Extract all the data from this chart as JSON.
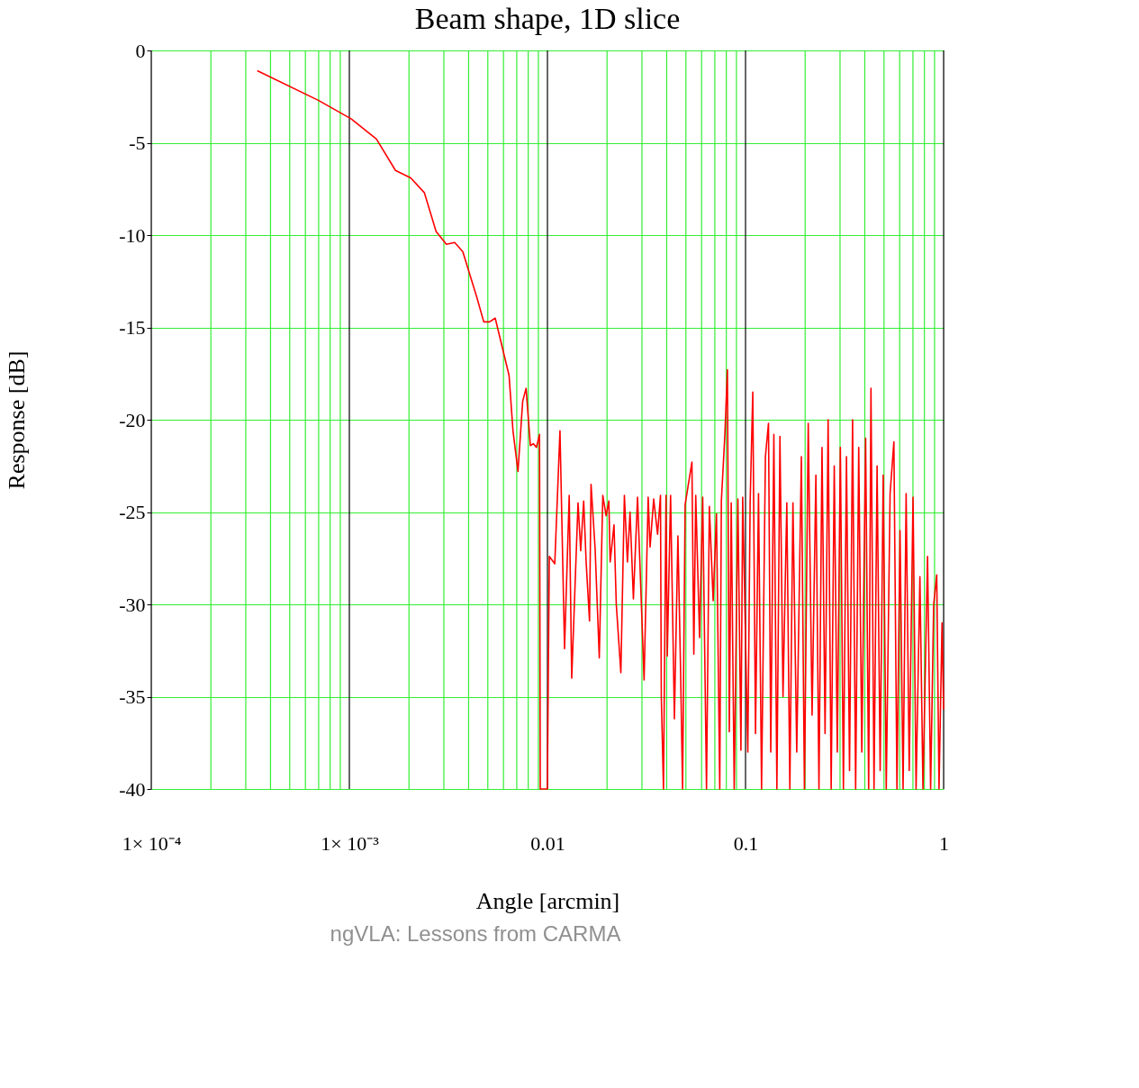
{
  "chart_data": {
    "type": "line",
    "title": "Beam shape, 1D slice",
    "xlabel": "Angle [arcmin]",
    "ylabel": "Response [dB]",
    "annotations": [
      "ngVLA: Lessons from CARMA"
    ],
    "log": "x",
    "grid": true,
    "xlim": [
      0.0001,
      1
    ],
    "ylim": [
      -40,
      0
    ],
    "xticks": [
      {
        "value": 0.0001,
        "label": "1× 10⁻⁴"
      },
      {
        "value": 0.0002,
        "label": null
      },
      {
        "value": 0.0003,
        "label": null
      },
      {
        "value": 0.0004,
        "label": null
      },
      {
        "value": 0.0005,
        "label": null
      },
      {
        "value": 0.0006,
        "label": null
      },
      {
        "value": 0.0007,
        "label": null
      },
      {
        "value": 0.0008,
        "label": null
      },
      {
        "value": 0.0009,
        "label": null
      },
      {
        "value": 0.001,
        "label": "1× 10⁻³"
      },
      {
        "value": 0.002,
        "label": null
      },
      {
        "value": 0.003,
        "label": null
      },
      {
        "value": 0.004,
        "label": null
      },
      {
        "value": 0.005,
        "label": null
      },
      {
        "value": 0.006,
        "label": null
      },
      {
        "value": 0.007,
        "label": null
      },
      {
        "value": 0.008,
        "label": null
      },
      {
        "value": 0.009,
        "label": null
      },
      {
        "value": 0.01,
        "label": "0.01"
      },
      {
        "value": 0.02,
        "label": null
      },
      {
        "value": 0.03,
        "label": null
      },
      {
        "value": 0.04,
        "label": null
      },
      {
        "value": 0.05,
        "label": null
      },
      {
        "value": 0.06,
        "label": null
      },
      {
        "value": 0.07,
        "label": null
      },
      {
        "value": 0.08,
        "label": null
      },
      {
        "value": 0.09,
        "label": null
      },
      {
        "value": 0.1,
        "label": "0.1"
      },
      {
        "value": 0.2,
        "label": null
      },
      {
        "value": 0.3,
        "label": null
      },
      {
        "value": 0.4,
        "label": null
      },
      {
        "value": 0.5,
        "label": null
      },
      {
        "value": 0.6,
        "label": null
      },
      {
        "value": 0.7,
        "label": null
      },
      {
        "value": 0.8,
        "label": null
      },
      {
        "value": 0.9,
        "label": null
      },
      {
        "value": 1,
        "label": "1"
      }
    ],
    "yticks": [
      0,
      -5,
      -10,
      -15,
      -20,
      -25,
      -30,
      -35,
      -40
    ],
    "series": [
      {
        "color": "#ff0000",
        "x": [
          0.000343,
          0.000697,
          0.00102,
          0.00137,
          0.00171,
          0.00204,
          0.00239,
          0.00274,
          0.00309,
          0.0034,
          0.00374,
          0.00441,
          0.00477,
          0.0051,
          0.00545,
          0.0064,
          0.0067,
          0.0071,
          0.0075,
          0.0078,
          0.0082,
          0.0085,
          0.0088,
          0.00912,
          0.0092,
          0.00999,
          0.01022,
          0.01089,
          0.01157,
          0.0122,
          0.01288,
          0.01326,
          0.01427,
          0.01472,
          0.01524,
          0.01568,
          0.01631,
          0.0166,
          0.01741,
          0.01827,
          0.01903,
          0.01978,
          0.02042,
          0.02073,
          0.02168,
          0.02226,
          0.02348,
          0.02446,
          0.02534,
          0.02612,
          0.02716,
          0.0285,
          0.03076,
          0.03225,
          0.03297,
          0.03438,
          0.03597,
          0.03721,
          0.03757,
          0.03853,
          0.03968,
          0.04027,
          0.04185,
          0.04375,
          0.04557,
          0.04697,
          0.04811,
          0.04955,
          0.05363,
          0.05483,
          0.05606,
          0.05861,
          0.06078,
          0.06354,
          0.06567,
          0.06865,
          0.07133,
          0.07412,
          0.07551,
          0.07867,
          0.08101,
          0.08282,
          0.08468,
          0.08768,
          0.0915,
          0.0948,
          0.09676,
          0.1027,
          0.1055,
          0.1088,
          0.1123,
          0.1163,
          0.1205,
          0.126,
          0.1306,
          0.1341,
          0.139,
          0.144,
          0.1492,
          0.1546,
          0.1616,
          0.1674,
          0.1735,
          0.1814,
          0.1914,
          0.1983,
          0.2073,
          0.2168,
          0.2266,
          0.2348,
          0.2433,
          0.2521,
          0.2612,
          0.2706,
          0.2805,
          0.2906,
          0.3011,
          0.312,
          0.3233,
          0.335,
          0.3471,
          0.3597,
          0.3728,
          0.3863,
          0.4039,
          0.4185,
          0.4298,
          0.4453,
          0.4615,
          0.4782,
          0.4955,
          0.5134,
          0.5368,
          0.561,
          0.5814,
          0.6025,
          0.6243,
          0.6469,
          0.6704,
          0.7009,
          0.7261,
          0.7592,
          0.7867,
          0.8297,
          0.86,
          0.891,
          0.9232,
          0.948,
          0.982,
          1.0
        ],
        "values": [
          -1.1,
          -2.7,
          -3.7,
          -4.8,
          -6.5,
          -6.9,
          -7.7,
          -9.8,
          -10.5,
          -10.4,
          -10.9,
          -13.4,
          -14.7,
          -14.7,
          -14.5,
          -17.6,
          -20.6,
          -22.8,
          -19.0,
          -18.3,
          -21.4,
          -21.3,
          -21.5,
          -20.8,
          -40,
          -40,
          -27.4,
          -27.8,
          -20.6,
          -32.4,
          -24.1,
          -34.0,
          -24.5,
          -27.1,
          -24.4,
          -27.7,
          -30.9,
          -23.5,
          -27.0,
          -32.9,
          -24.1,
          -25.2,
          -24.4,
          -27.7,
          -25.7,
          -30.0,
          -33.7,
          -24.1,
          -27.7,
          -25.0,
          -29.7,
          -24.2,
          -34.1,
          -24.2,
          -26.9,
          -24.3,
          -26.2,
          -24.1,
          -35.0,
          -40,
          -24.1,
          -32.8,
          -24.1,
          -36.2,
          -26.3,
          -33.4,
          -40,
          -24.6,
          -22.3,
          -32.7,
          -24.1,
          -31.8,
          -24.2,
          -40,
          -24.7,
          -29.8,
          -25.1,
          -40,
          -24.4,
          -20.8,
          -17.3,
          -36.9,
          -24.5,
          -40,
          -24.3,
          -37.9,
          -24.2,
          -38,
          -24.5,
          -18.5,
          -37,
          -24,
          -40,
          -22,
          -20.2,
          -38,
          -20.8,
          -40,
          -20.9,
          -35,
          -24.5,
          -40,
          -24.5,
          -38,
          -22.0,
          -40,
          -20.2,
          -36,
          -23.0,
          -40,
          -21.5,
          -37,
          -20.0,
          -40,
          -22.5,
          -38,
          -21.5,
          -40,
          -22.0,
          -39,
          -20.0,
          -40,
          -21.5,
          -38,
          -21.0,
          -40,
          -18.3,
          -40,
          -22.5,
          -39,
          -23.0,
          -40,
          -24.0,
          -21.2,
          -40,
          -26.0,
          -40,
          -24.0,
          -39,
          -24.2,
          -40,
          -28.5,
          -40,
          -27.4,
          -40,
          -30,
          -28.4,
          -40,
          -31,
          -35.7
        ]
      }
    ]
  }
}
